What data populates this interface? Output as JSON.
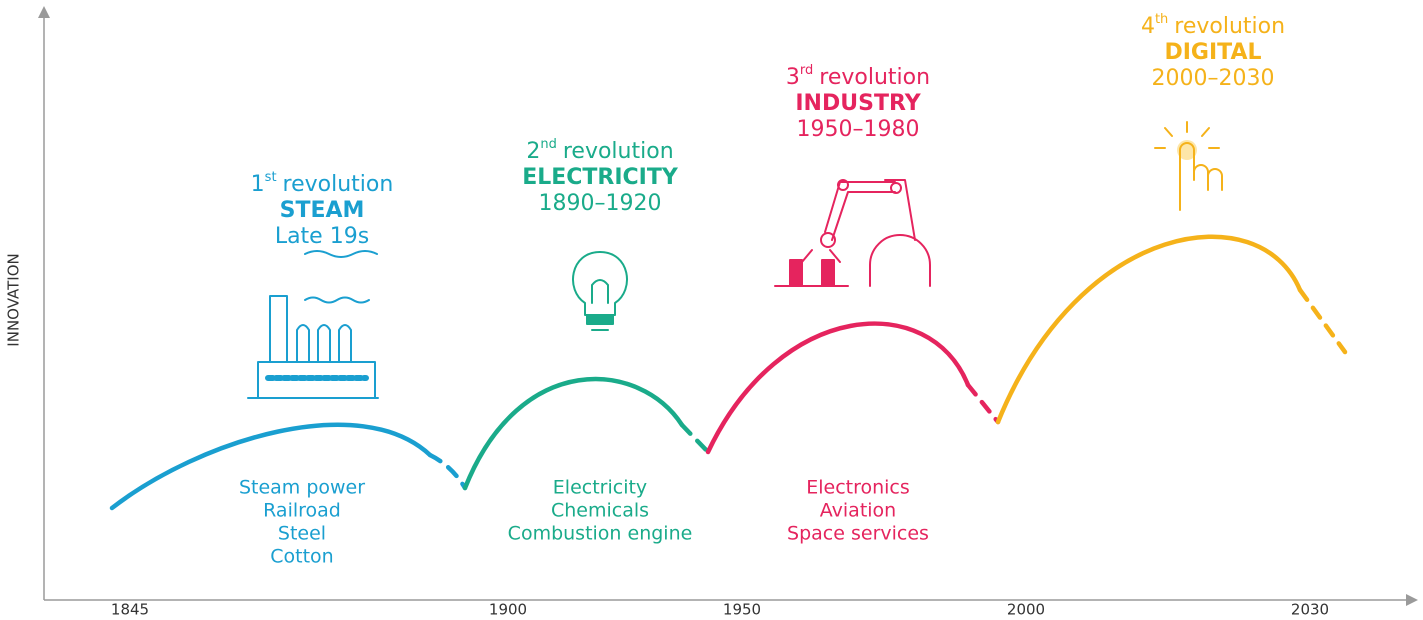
{
  "axes": {
    "y_label": "INNOVATION",
    "x_ticks": [
      "1845",
      "1900",
      "1950",
      "2000",
      "2030"
    ]
  },
  "revolutions": [
    {
      "ordinal": "1",
      "suffix": "st",
      "label": "revolution",
      "name": "STEAM",
      "period": "Late 19s",
      "items": [
        "Steam power",
        "Railroad",
        "Steel",
        "Cotton"
      ]
    },
    {
      "ordinal": "2",
      "suffix": "nd",
      "label": "revolution",
      "name": "ELECTRICITY",
      "period": "1890–1920",
      "items": [
        "Electricity",
        "Chemicals",
        "Combustion engine"
      ]
    },
    {
      "ordinal": "3",
      "suffix": "rd",
      "label": "revolution",
      "name": "INDUSTRY",
      "period": "1950–1980",
      "items": [
        "Electronics",
        "Aviation",
        "Space services"
      ]
    },
    {
      "ordinal": "4",
      "suffix": "th",
      "label": "revolution",
      "name": "DIGITAL",
      "period": "2000–2030",
      "items": []
    }
  ]
}
